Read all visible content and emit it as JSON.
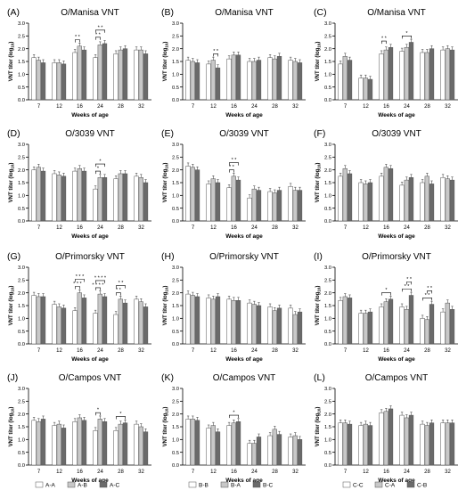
{
  "chart_data": {
    "type": "bar",
    "panels": [
      {
        "id": "A",
        "title": "O/Manisa VNT",
        "ylabel": "VNT titer (log10)",
        "xlabel": "Weeks of age",
        "ylim": [
          0,
          3
        ],
        "yticks": [
          "0.0",
          "0.5",
          "1.0",
          "1.5",
          "2.0",
          "2.5",
          "3.0"
        ],
        "categories": [
          "7",
          "12",
          "16",
          "24",
          "28",
          "32"
        ],
        "series_names": [
          "A-A",
          "A-B",
          "A-C"
        ],
        "values": [
          [
            1.65,
            1.55,
            1.45
          ],
          [
            1.45,
            1.45,
            1.4
          ],
          [
            1.85,
            2.1,
            1.95
          ],
          [
            1.65,
            2.15,
            2.2
          ],
          [
            1.8,
            1.95,
            2.0
          ],
          [
            1.95,
            1.95,
            1.8
          ]
        ],
        "significance": [
          {
            "week": "16",
            "pairs": [
              [
                0,
                1
              ]
            ],
            "label": "* *"
          },
          {
            "week": "24",
            "pairs": [
              [
                0,
                1
              ],
              [
                0,
                2
              ]
            ],
            "label": "* *"
          }
        ]
      },
      {
        "id": "B",
        "title": "O/Manisa VNT",
        "ylabel": "VNT titer (log10)",
        "xlabel": "Weeks of age",
        "ylim": [
          0,
          3
        ],
        "yticks": [
          "0.0",
          "0.5",
          "1.0",
          "1.5",
          "2.0",
          "2.5",
          "3.0"
        ],
        "categories": [
          "7",
          "12",
          "16",
          "24",
          "28",
          "32"
        ],
        "series_names": [
          "B-B",
          "B-A",
          "B-C"
        ],
        "values": [
          [
            1.55,
            1.5,
            1.45
          ],
          [
            1.4,
            1.55,
            1.25
          ],
          [
            1.6,
            1.75,
            1.75
          ],
          [
            1.5,
            1.5,
            1.55
          ],
          [
            1.65,
            1.6,
            1.7
          ],
          [
            1.55,
            1.5,
            1.45
          ]
        ],
        "significance": [
          {
            "week": "12",
            "pairs": [
              [
                1,
                2
              ]
            ],
            "label": "* *"
          }
        ]
      },
      {
        "id": "C",
        "title": "O/Manisa VNT",
        "ylabel": "VNT titer (log10)",
        "xlabel": "Weeks of age",
        "ylim": [
          0,
          3
        ],
        "yticks": [
          "0.0",
          "0.5",
          "1.0",
          "1.5",
          "2.0",
          "2.5",
          "3.0"
        ],
        "categories": [
          "7",
          "12",
          "16",
          "24",
          "28",
          "32"
        ],
        "series_names": [
          "C-C",
          "C-A",
          "C-B"
        ],
        "values": [
          [
            1.4,
            1.7,
            1.55
          ],
          [
            0.85,
            0.85,
            0.8
          ],
          [
            1.8,
            1.95,
            2.05
          ],
          [
            1.9,
            2.05,
            2.25
          ],
          [
            1.85,
            1.85,
            2.0
          ],
          [
            1.95,
            2.0,
            1.95
          ]
        ],
        "significance": [
          {
            "week": "16",
            "pairs": [
              [
                0,
                1
              ]
            ],
            "label": "* *"
          },
          {
            "week": "24",
            "pairs": [
              [
                0,
                2
              ]
            ],
            "label": "*"
          }
        ]
      },
      {
        "id": "D",
        "title": "O/3039 VNT",
        "ylabel": "VNT titer (log10)",
        "xlabel": "Weeks of age",
        "ylim": [
          0,
          3
        ],
        "yticks": [
          "0.0",
          "0.5",
          "1.0",
          "1.5",
          "2.0",
          "2.5",
          "3.0"
        ],
        "categories": [
          "7",
          "12",
          "16",
          "24",
          "28",
          "32"
        ],
        "series_names": [
          "A-A",
          "A-B",
          "A-C"
        ],
        "values": [
          [
            2.0,
            2.1,
            1.95
          ],
          [
            1.85,
            1.8,
            1.75
          ],
          [
            1.95,
            2.05,
            1.95
          ],
          [
            1.25,
            1.7,
            1.7
          ],
          [
            1.65,
            1.85,
            1.85
          ],
          [
            1.75,
            1.7,
            1.5
          ]
        ],
        "significance": [
          {
            "week": "24",
            "pairs": [
              [
                0,
                1
              ],
              [
                0,
                2
              ]
            ],
            "label": "*"
          }
        ]
      },
      {
        "id": "E",
        "title": "O/3039 VNT",
        "ylabel": "VNT titer (log10)",
        "xlabel": "Weeks of age",
        "ylim": [
          0,
          3
        ],
        "yticks": [
          "0.0",
          "0.5",
          "1.0",
          "1.5",
          "2.0",
          "2.5",
          "3.0"
        ],
        "categories": [
          "7",
          "12",
          "16",
          "24",
          "28",
          "32"
        ],
        "series_names": [
          "B-B",
          "B-A",
          "B-C"
        ],
        "values": [
          [
            2.15,
            2.1,
            2.0
          ],
          [
            1.45,
            1.65,
            1.5
          ],
          [
            1.3,
            1.75,
            1.6
          ],
          [
            0.9,
            1.25,
            1.2
          ],
          [
            1.15,
            1.1,
            1.2
          ],
          [
            1.35,
            1.2,
            1.2
          ]
        ],
        "significance": [
          {
            "week": "16",
            "pairs": [
              [
                0,
                1
              ],
              [
                0,
                2
              ]
            ],
            "label": "* *"
          }
        ]
      },
      {
        "id": "F",
        "title": "O/3039 VNT",
        "ylabel": "VNT titer (log10)",
        "xlabel": "Weeks of age",
        "ylim": [
          0,
          3
        ],
        "yticks": [
          "0.0",
          "0.5",
          "1.0",
          "1.5",
          "2.0",
          "2.5",
          "3.0"
        ],
        "categories": [
          "7",
          "12",
          "16",
          "24",
          "28",
          "32"
        ],
        "series_names": [
          "C-C",
          "C-A",
          "C-B"
        ],
        "values": [
          [
            1.75,
            2.05,
            1.85
          ],
          [
            1.5,
            1.45,
            1.5
          ],
          [
            1.75,
            2.1,
            2.05
          ],
          [
            1.4,
            1.6,
            1.7
          ],
          [
            1.5,
            1.75,
            1.45
          ],
          [
            1.7,
            1.65,
            1.6
          ]
        ],
        "significance": []
      },
      {
        "id": "G",
        "title": "O/Primorsky VNT",
        "ylabel": "VNT titer (log10)",
        "xlabel": "Weeks of age",
        "ylim": [
          0,
          3
        ],
        "yticks": [
          "0.0",
          "0.5",
          "1.0",
          "1.5",
          "2.0",
          "2.5",
          "3.0"
        ],
        "categories": [
          "7",
          "12",
          "16",
          "24",
          "28",
          "32"
        ],
        "series_names": [
          "A-A",
          "A-B",
          "A-C"
        ],
        "values": [
          [
            1.9,
            1.85,
            1.85
          ],
          [
            1.55,
            1.45,
            1.4
          ],
          [
            1.3,
            2.0,
            1.8
          ],
          [
            1.2,
            1.95,
            1.85
          ],
          [
            1.15,
            1.75,
            1.6
          ],
          [
            1.75,
            1.65,
            1.45
          ]
        ],
        "significance": [
          {
            "week": "16",
            "pairs": [
              [
                0,
                1
              ],
              [
                0,
                2
              ]
            ],
            "label": "* * *"
          },
          {
            "week": "24",
            "pairs": [
              [
                0,
                1
              ],
              [
                0,
                2
              ]
            ],
            "label": "* * * *"
          },
          {
            "week": "28",
            "pairs": [
              [
                0,
                1
              ],
              [
                0,
                2
              ]
            ],
            "label": "* *"
          }
        ]
      },
      {
        "id": "H",
        "title": "O/Primorsky VNT",
        "ylabel": "VNT titer (log10)",
        "xlabel": "Weeks of age",
        "ylim": [
          0,
          3
        ],
        "yticks": [
          "0.0",
          "0.5",
          "1.0",
          "1.5",
          "2.0",
          "2.5",
          "3.0"
        ],
        "categories": [
          "7",
          "12",
          "16",
          "24",
          "28",
          "32"
        ],
        "series_names": [
          "B-B",
          "B-A",
          "B-C"
        ],
        "values": [
          [
            1.95,
            1.9,
            1.85
          ],
          [
            1.8,
            1.75,
            1.85
          ],
          [
            1.75,
            1.7,
            1.7
          ],
          [
            1.6,
            1.55,
            1.5
          ],
          [
            1.45,
            1.3,
            1.4
          ],
          [
            1.4,
            1.15,
            1.25
          ]
        ],
        "significance": []
      },
      {
        "id": "I",
        "title": "O/Primorsky VNT",
        "ylabel": "VNT titer (log10)",
        "xlabel": "Weeks of age",
        "ylim": [
          0,
          3
        ],
        "yticks": [
          "0.0",
          "0.5",
          "1.0",
          "1.5",
          "2.0",
          "2.5",
          "3.0"
        ],
        "categories": [
          "7",
          "12",
          "16",
          "24",
          "28",
          "32"
        ],
        "series_names": [
          "C-C",
          "C-A",
          "C-B"
        ],
        "values": [
          [
            1.7,
            1.85,
            1.8
          ],
          [
            1.2,
            1.2,
            1.25
          ],
          [
            1.45,
            1.65,
            1.75
          ],
          [
            1.45,
            1.35,
            1.9
          ],
          [
            1.0,
            0.95,
            1.55
          ],
          [
            1.25,
            1.6,
            1.35
          ]
        ],
        "significance": [
          {
            "week": "16",
            "pairs": [
              [
                0,
                2
              ]
            ],
            "label": "*"
          },
          {
            "week": "24",
            "pairs": [
              [
                0,
                2
              ],
              [
                1,
                2
              ]
            ],
            "label": "* *"
          },
          {
            "week": "28",
            "pairs": [
              [
                0,
                2
              ],
              [
                1,
                2
              ]
            ],
            "label": "* *"
          }
        ]
      },
      {
        "id": "J",
        "title": "O/Campos VNT",
        "ylabel": "VNT titer (log10)",
        "xlabel": "Weeks of age",
        "ylim": [
          0,
          3
        ],
        "yticks": [
          "0.0",
          "0.5",
          "1.0",
          "1.5",
          "2.0",
          "2.5",
          "3.0"
        ],
        "categories": [
          "7",
          "12",
          "16",
          "24",
          "28",
          "32"
        ],
        "series_names": [
          "A-A",
          "A-B",
          "A-C"
        ],
        "values": [
          [
            1.75,
            1.7,
            1.8
          ],
          [
            1.55,
            1.6,
            1.45
          ],
          [
            1.7,
            1.85,
            1.75
          ],
          [
            1.35,
            1.8,
            1.7
          ],
          [
            1.35,
            1.6,
            1.65
          ],
          [
            1.6,
            1.5,
            1.3
          ]
        ],
        "significance": [
          {
            "week": "24",
            "pairs": [
              [
                0,
                1
              ]
            ],
            "label": "*"
          },
          {
            "week": "28",
            "pairs": [
              [
                0,
                2
              ]
            ],
            "label": "*"
          }
        ]
      },
      {
        "id": "K",
        "title": "O/Campos VNT",
        "ylabel": "VNT titer (log10)",
        "xlabel": "Weeks of age",
        "ylim": [
          0,
          3
        ],
        "yticks": [
          "0.0",
          "0.5",
          "1.0",
          "1.5",
          "2.0",
          "2.5",
          "3.0"
        ],
        "categories": [
          "7",
          "12",
          "16",
          "24",
          "28",
          "32"
        ],
        "series_names": [
          "B-B",
          "B-A",
          "B-C"
        ],
        "values": [
          [
            1.8,
            1.8,
            1.75
          ],
          [
            1.45,
            1.55,
            1.3
          ],
          [
            1.55,
            1.65,
            1.7
          ],
          [
            0.85,
            0.85,
            1.1
          ],
          [
            1.15,
            1.4,
            1.2
          ],
          [
            1.1,
            1.15,
            1.0
          ]
        ],
        "significance": [
          {
            "week": "16",
            "pairs": [
              [
                0,
                2
              ]
            ],
            "label": "*"
          }
        ]
      },
      {
        "id": "L",
        "title": "O/Campos VNT",
        "ylabel": "VNT titer (log10)",
        "xlabel": "Weeks of age",
        "ylim": [
          0,
          3
        ],
        "yticks": [
          "0.0",
          "0.5",
          "1.0",
          "1.5",
          "2.0",
          "2.5",
          "3.0"
        ],
        "categories": [
          "7",
          "12",
          "16",
          "24",
          "28",
          "32"
        ],
        "series_names": [
          "C-C",
          "C-A",
          "C-B"
        ],
        "values": [
          [
            1.65,
            1.65,
            1.6
          ],
          [
            1.55,
            1.6,
            1.55
          ],
          [
            2.05,
            2.1,
            2.2
          ],
          [
            1.95,
            1.85,
            1.95
          ],
          [
            1.6,
            1.55,
            1.65
          ],
          [
            1.65,
            1.65,
            1.65
          ]
        ],
        "significance": []
      }
    ],
    "legends": [
      {
        "items": [
          "A-A",
          "A-B",
          "A-C"
        ]
      },
      {
        "items": [
          "B-B",
          "B-A",
          "B-C"
        ]
      },
      {
        "items": [
          "C-C",
          "C-A",
          "C-B"
        ]
      }
    ]
  },
  "style": {
    "colors": [
      "#ffffff",
      "#c8c8c8",
      "#6a6a6a"
    ],
    "bar_stroke": "#555555",
    "axis_color": "#000000"
  }
}
